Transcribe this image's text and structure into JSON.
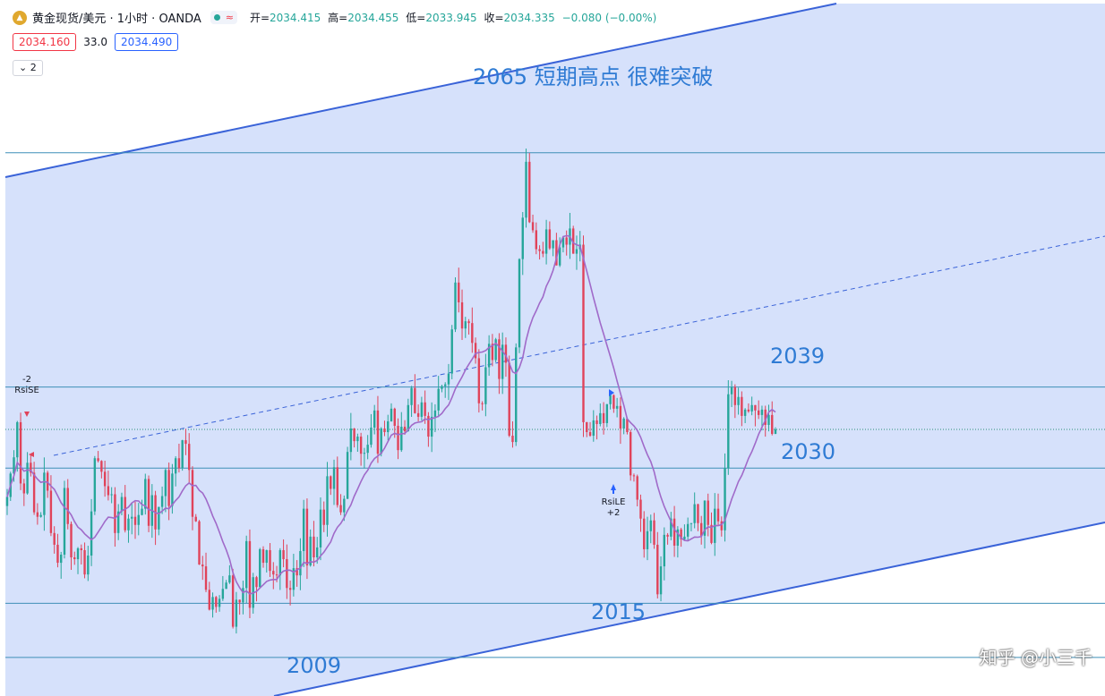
{
  "header": {
    "symbol_title": "黄金现货/美元 · 1小时 · OANDA",
    "approx_icon": "≈",
    "ohlc": [
      {
        "label": "开=",
        "value": "2034.415"
      },
      {
        "label": "高=",
        "value": "2034.455"
      },
      {
        "label": "低=",
        "value": "2033.945"
      },
      {
        "label": "收=",
        "value": "2034.335"
      }
    ],
    "change": "−0.080 (−0.00%)",
    "sell_price": "2034.160",
    "spread": "33.0",
    "buy_price": "2034.490",
    "indicator_count": "2"
  },
  "annotations": {
    "high_note": "2065 短期高点 很难突破",
    "level_2039": "2039",
    "level_2030": "2030",
    "level_2015": "2015",
    "level_2009": "2009"
  },
  "signals": {
    "short_label_top": "-2",
    "short_label": "RsiSE",
    "long_label": "RsiLE",
    "long_label_bottom": "+2"
  },
  "watermark": "知乎 @小三千",
  "colors": {
    "up": "#26a69a",
    "down": "#e0435a",
    "channel_fill": "#d6e1fb",
    "channel_line": "#3a63d8",
    "ma": "#a06ac9",
    "hline": "#3f8fb8",
    "text_blue": "#2f7bd4"
  },
  "chart_data": {
    "type": "candlestick",
    "symbol": "XAUUSD",
    "interval": "1h",
    "horizontal_levels": [
      2065,
      2039,
      2034.3,
      2030,
      2015,
      2009
    ],
    "ylim": [
      2006.5,
      2076
    ],
    "closes": [
      2026.8,
      2029.4,
      2031.2,
      2035.1,
      2028.3,
      2027.2,
      2030.6,
      2029.5,
      2025.1,
      2024.6,
      2024.8,
      2029.5,
      2027.5,
      2022.8,
      2021.5,
      2019.5,
      2020.4,
      2027.8,
      2023.8,
      2020.1,
      2019.9,
      2021.1,
      2020.9,
      2018.2,
      2020.3,
      2025.2,
      2031.1,
      2030.8,
      2029.6,
      2028.0,
      2027.0,
      2027.1,
      2022.8,
      2025.2,
      2026.8,
      2023.1,
      2024.4,
      2024.6,
      2023.7,
      2024.8,
      2025.5,
      2028.8,
      2023.6,
      2027.0,
      2023.2,
      2025.7,
      2026.9,
      2029.8,
      2025.8,
      2029.4,
      2031.1,
      2030.0,
      2033.1,
      2032.7,
      2029.8,
      2024.6,
      2024.1,
      2019.3,
      2019.1,
      2016.5,
      2014.3,
      2015.7,
      2014.6,
      2015.5,
      2016.6,
      2017.3,
      2018.1,
      2012.4,
      2015.4,
      2015.1,
      2016.7,
      2021.9,
      2014.5,
      2017.9,
      2016.8,
      2021.0,
      2019.5,
      2020.9,
      2018.6,
      2018.2,
      2018.1,
      2020.9,
      2019.9,
      2016.7,
      2016.5,
      2018.9,
      2018.1,
      2020.8,
      2025.5,
      2019.2,
      2022.4,
      2020.1,
      2021.2,
      2025.4,
      2023.7,
      2029.1,
      2027.7,
      2030.1,
      2025.9,
      2025.1,
      2026.6,
      2031.8,
      2034.4,
      2033.0,
      2033.5,
      2031.6,
      2031.7,
      2032.6,
      2034.5,
      2036.4,
      2031.6,
      2034.4,
      2034.0,
      2035.2,
      2036.6,
      2034.7,
      2032.0,
      2034.6,
      2034.1,
      2037.0,
      2038.9,
      2036.1,
      2035.7,
      2037.3,
      2035.8,
      2033.5,
      2035.7,
      2036.4,
      2038.8,
      2039.1,
      2039.3,
      2040.5,
      2045.4,
      2050.6,
      2048.4,
      2045.5,
      2046.3,
      2046.1,
      2043.9,
      2042.2,
      2037.2,
      2037.1,
      2041.2,
      2043.8,
      2042.0,
      2044.3,
      2039.9,
      2043.7,
      2041.7,
      2033.6,
      2032.9,
      2043.4,
      2053.2,
      2057.8,
      2064.0,
      2057.3,
      2056.4,
      2054.3,
      2054.1,
      2053.8,
      2056.5,
      2054.4,
      2055.3,
      2052.5,
      2054.5,
      2055.6,
      2054.8,
      2056.6,
      2053.8,
      2054.3,
      2054.8,
      2035.1,
      2034.0,
      2033.6,
      2035.3,
      2034.9,
      2036.1,
      2035.0,
      2037.1,
      2038.1,
      2036.6,
      2036.9,
      2034.4,
      2035.5,
      2034.0,
      2029.2,
      2029.1,
      2026.5,
      2024.4,
      2021.0,
      2023.0,
      2024.2,
      2021.5,
      2016.0,
      2019.1,
      2022.6,
      2022.4,
      2024.4,
      2021.4,
      2023.2,
      2022.1,
      2022.4,
      2023.8,
      2023.9,
      2026.0,
      2023.9,
      2022.5,
      2026.4,
      2023.7,
      2021.7,
      2025.5,
      2024.1,
      2023.1,
      2030.0,
      2038.2,
      2039.0,
      2037.0,
      2037.9,
      2035.8,
      2036.5,
      2036.3,
      2037.0,
      2036.4,
      2035.9,
      2036.5,
      2034.8,
      2035.9,
      2033.8,
      2034.3
    ]
  }
}
